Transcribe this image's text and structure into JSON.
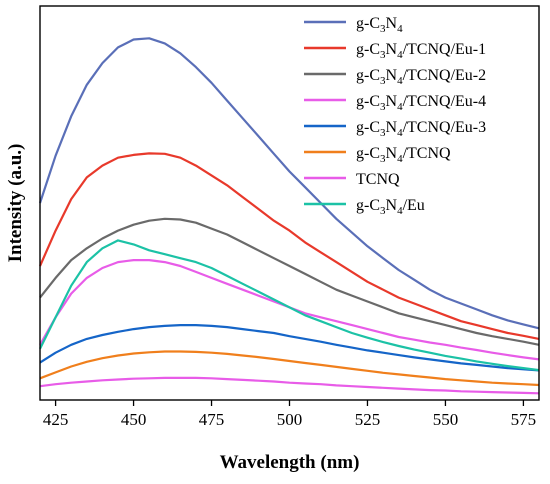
{
  "chart_data": {
    "type": "line",
    "title": "",
    "xlabel": "Wavelength (nm)",
    "ylabel": "Intensity (a.u.)",
    "xlim": [
      420,
      580
    ],
    "ylim": [
      0,
      100
    ],
    "x_ticks": [
      425,
      450,
      475,
      500,
      525,
      550,
      575
    ],
    "y_ticks_shown": false,
    "grid": false,
    "legend": "top-right",
    "x": [
      420,
      425,
      430,
      435,
      440,
      445,
      450,
      455,
      460,
      465,
      470,
      475,
      480,
      485,
      490,
      495,
      500,
      505,
      510,
      515,
      520,
      525,
      530,
      535,
      540,
      545,
      550,
      555,
      560,
      565,
      570,
      575,
      580
    ],
    "series": [
      {
        "name_parts": [
          [
            "g-C",
            ""
          ],
          [
            "3",
            "sub"
          ],
          [
            "N",
            ""
          ],
          [
            "4",
            "sub"
          ]
        ],
        "name": "g-C3N4",
        "color": "#5a6fb8",
        "values": [
          50,
          62,
          72,
          80,
          85.5,
          89.5,
          91.5,
          91.8,
          90.5,
          88,
          84.5,
          80.5,
          76,
          71.5,
          67,
          62.5,
          58,
          54,
          50,
          46,
          42.5,
          39,
          36,
          33,
          30.5,
          28,
          26,
          24.5,
          23,
          21.5,
          20.2,
          19.2,
          18.2
        ]
      },
      {
        "name_parts": [
          [
            "g-C",
            ""
          ],
          [
            "3",
            "sub"
          ],
          [
            "N",
            ""
          ],
          [
            "4",
            "sub"
          ],
          [
            "/TCNQ/Eu-1",
            ""
          ]
        ],
        "name": "g-C3N4/TCNQ/Eu-1",
        "color": "#e8392b",
        "values": [
          34,
          43,
          51,
          56.5,
          59.5,
          61.5,
          62.2,
          62.6,
          62.5,
          61.5,
          59.5,
          57,
          54.5,
          51.5,
          48.5,
          45.5,
          43,
          40,
          37.5,
          35,
          32.5,
          30,
          28,
          26,
          24.5,
          23,
          21.5,
          20,
          19,
          18,
          17,
          16.3,
          15.5
        ]
      },
      {
        "name_parts": [
          [
            "g-C",
            ""
          ],
          [
            "3",
            "sub"
          ],
          [
            "N",
            ""
          ],
          [
            "4",
            "sub"
          ],
          [
            "/TCNQ/Eu-2",
            ""
          ]
        ],
        "name": "g-C3N4/TCNQ/Eu-2",
        "color": "#6a6a6a",
        "values": [
          26,
          31,
          35.5,
          38.5,
          41,
          43,
          44.5,
          45.5,
          46,
          45.8,
          45,
          43.5,
          42,
          40,
          38,
          36,
          34,
          32,
          30,
          28,
          26.5,
          25,
          23.5,
          22,
          21,
          20,
          19,
          18,
          17,
          16.2,
          15.5,
          14.8,
          14
        ]
      },
      {
        "name_parts": [
          [
            "g-C",
            ""
          ],
          [
            "3",
            "sub"
          ],
          [
            "N",
            ""
          ],
          [
            "4",
            "sub"
          ],
          [
            "/TCNQ/Eu-4",
            ""
          ]
        ],
        "name": "g-C3N4/TCNQ/Eu-4",
        "color": "#e85ce8",
        "values": [
          14,
          21,
          27,
          31,
          33.5,
          35,
          35.5,
          35.5,
          35,
          34,
          32.5,
          31,
          29.5,
          28,
          26.5,
          25,
          23.5,
          22,
          21,
          20,
          19,
          18,
          17,
          16,
          15.3,
          14.6,
          14,
          13.3,
          12.7,
          12,
          11.4,
          10.8,
          10.3
        ]
      },
      {
        "name_parts": [
          [
            "g-C",
            ""
          ],
          [
            "3",
            "sub"
          ],
          [
            "N",
            ""
          ],
          [
            "4",
            "sub"
          ],
          [
            "/TCNQ/Eu-3",
            ""
          ]
        ],
        "name": "g-C3N4/TCNQ/Eu-3",
        "color": "#1565c8",
        "values": [
          9.5,
          12,
          14,
          15.5,
          16.5,
          17.3,
          18,
          18.5,
          18.8,
          19,
          19,
          18.8,
          18.5,
          18,
          17.5,
          17,
          16.2,
          15.5,
          14.8,
          14,
          13.3,
          12.6,
          12,
          11.4,
          10.8,
          10.3,
          9.8,
          9.3,
          8.9,
          8.5,
          8.1,
          7.8,
          7.5
        ]
      },
      {
        "name_parts": [
          [
            "g-C",
            ""
          ],
          [
            "3",
            "sub"
          ],
          [
            "N",
            ""
          ],
          [
            "4",
            "sub"
          ],
          [
            "/TCNQ",
            ""
          ]
        ],
        "name": "g-C3N4/TCNQ",
        "color": "#f07f1c",
        "values": [
          5.5,
          7,
          8.5,
          9.7,
          10.6,
          11.3,
          11.8,
          12.1,
          12.3,
          12.3,
          12.2,
          12,
          11.7,
          11.3,
          10.9,
          10.4,
          9.9,
          9.4,
          8.9,
          8.4,
          7.9,
          7.4,
          6.9,
          6.5,
          6.1,
          5.7,
          5.3,
          5,
          4.7,
          4.4,
          4.2,
          4,
          3.8
        ]
      },
      {
        "name_parts": [
          [
            "TCNQ",
            ""
          ]
        ],
        "name": "TCNQ",
        "color": "#e85ce8",
        "values": [
          3.5,
          4,
          4.4,
          4.7,
          5,
          5.2,
          5.4,
          5.5,
          5.6,
          5.6,
          5.6,
          5.5,
          5.3,
          5.1,
          4.9,
          4.7,
          4.4,
          4.2,
          4,
          3.7,
          3.5,
          3.3,
          3.1,
          2.9,
          2.7,
          2.5,
          2.4,
          2.2,
          2.1,
          2,
          1.9,
          1.8,
          1.7
        ]
      },
      {
        "name_parts": [
          [
            "g-C",
            ""
          ],
          [
            "3",
            "sub"
          ],
          [
            "N",
            ""
          ],
          [
            "4",
            "sub"
          ],
          [
            "/Eu",
            ""
          ]
        ],
        "name": "g-C3N4/Eu",
        "color": "#1cc2a6",
        "values": [
          13,
          21,
          29,
          35,
          38.5,
          40.5,
          39.5,
          38,
          37,
          36,
          35,
          33.5,
          31.5,
          29.5,
          27.5,
          25.5,
          23.5,
          21.5,
          20,
          18.5,
          17,
          15.8,
          14.7,
          13.7,
          12.8,
          12,
          11.2,
          10.5,
          9.8,
          9.2,
          8.6,
          8.1,
          7.6
        ]
      }
    ]
  }
}
